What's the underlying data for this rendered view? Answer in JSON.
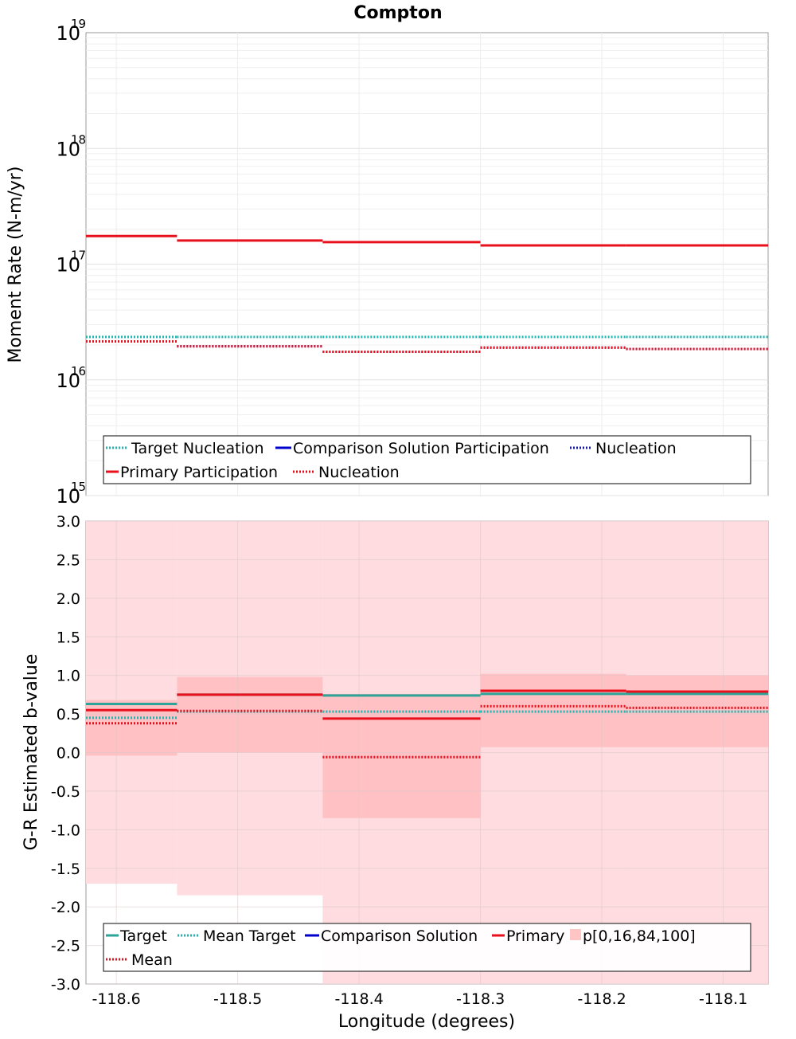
{
  "title": "Compton",
  "chart_data": [
    {
      "type": "line",
      "subtype": "step",
      "ylabel": "Moment Rate (N-m/yr)",
      "xlabel": "",
      "yscale": "log",
      "ylim": [
        1000000000000000.0,
        1e+19
      ],
      "xlim": [
        -118.625,
        -118.063
      ],
      "grid": true,
      "y_tick_labels": [
        {
          "value": 1000000000000000.0,
          "base": "10",
          "exp": "15"
        },
        {
          "value": 1e+16,
          "base": "10",
          "exp": "16"
        },
        {
          "value": 1e+17,
          "base": "10",
          "exp": "17"
        },
        {
          "value": 1e+18,
          "base": "10",
          "exp": "18"
        },
        {
          "value": 1e+19,
          "base": "10",
          "exp": "19"
        }
      ],
      "x_bin_edges": [
        -118.625,
        -118.55,
        -118.43,
        -118.3,
        -118.18,
        -118.063
      ],
      "series": [
        {
          "name": "Target Nucleation",
          "style": "dotted",
          "color": "#1fb5b0",
          "values": [
            2.35e+16,
            2.35e+16,
            2.35e+16,
            2.35e+16,
            2.35e+16
          ]
        },
        {
          "name": "Comparison Solution Participation",
          "style": "solid",
          "color": "#0000cc",
          "values": []
        },
        {
          "name": "Nucleation",
          "style": "dotted",
          "color": "#1a1aa8",
          "values": [
            2.15e+16,
            1.95e+16,
            1.75e+16,
            1.9e+16,
            1.85e+16
          ]
        },
        {
          "name": "Primary Participation",
          "style": "solid",
          "color": "#e8101c",
          "values": [
            1.75e+17,
            1.6e+17,
            1.55e+17,
            1.45e+17,
            1.45e+17
          ]
        },
        {
          "name": "Nucleation",
          "style": "dotted",
          "color": "#e8101c",
          "values": [
            2.15e+16,
            1.95e+16,
            1.75e+16,
            1.9e+16,
            1.85e+16
          ]
        }
      ]
    },
    {
      "type": "line",
      "subtype": "step",
      "ylabel": "G-R Estimated b-value",
      "xlabel": "Longitude (degrees)",
      "ylim": [
        -3.0,
        3.0
      ],
      "xlim": [
        -118.625,
        -118.063
      ],
      "grid": true,
      "y_ticks": [
        "-3.0",
        "-2.5",
        "-2.0",
        "-1.5",
        "-1.0",
        "-0.5",
        "0.0",
        "0.5",
        "1.0",
        "1.5",
        "2.0",
        "2.5",
        "3.0"
      ],
      "x_ticks": [
        "-118.6",
        "-118.5",
        "-118.4",
        "-118.3",
        "-118.2",
        "-118.1"
      ],
      "x_bin_edges": [
        -118.625,
        -118.55,
        -118.43,
        -118.3,
        -118.18,
        -118.063
      ],
      "series": [
        {
          "name": "Target",
          "style": "solid",
          "color": "#2ea39a",
          "values": [
            0.63,
            0.75,
            0.74,
            0.76,
            0.76
          ]
        },
        {
          "name": "Mean Target",
          "style": "dotted",
          "color": "#1fb5b0",
          "values": [
            0.45,
            0.53,
            0.53,
            0.53,
            0.53
          ]
        },
        {
          "name": "Comparison Solution",
          "style": "solid",
          "color": "#0000cc",
          "values": []
        },
        {
          "name": "Primary",
          "style": "solid",
          "color": "#e8101c",
          "values": [
            0.55,
            0.75,
            0.44,
            0.8,
            0.79
          ]
        },
        {
          "name": "Mean",
          "style": "dotted",
          "color": "#e8101c",
          "values": [
            0.38,
            0.54,
            -0.06,
            0.6,
            0.58
          ]
        }
      ],
      "bands": {
        "name": "p[0,16,84,100]",
        "outer": [
          [
            -1.7,
            1.03
          ],
          [
            -1.85,
            1.03
          ],
          [
            -3.0,
            1.03
          ],
          [
            -3.0,
            1.03
          ],
          [
            -3.0,
            1.03
          ]
        ],
        "inner": [
          [
            -0.04,
            0.68
          ],
          [
            0.0,
            0.98
          ],
          [
            -0.85,
            0.76
          ],
          [
            0.07,
            1.02
          ],
          [
            0.07,
            1.0
          ]
        ]
      }
    }
  ],
  "legend_top": {
    "row1": [
      "Target Nucleation",
      "Comparison Solution Participation",
      "Nucleation"
    ],
    "row2": [
      "Primary Participation",
      "Nucleation"
    ]
  },
  "legend_bottom": {
    "row1": [
      "Target",
      "Mean Target",
      "Comparison Solution",
      "Primary",
      "p[0,16,84,100]"
    ],
    "row2": [
      "Mean"
    ]
  }
}
